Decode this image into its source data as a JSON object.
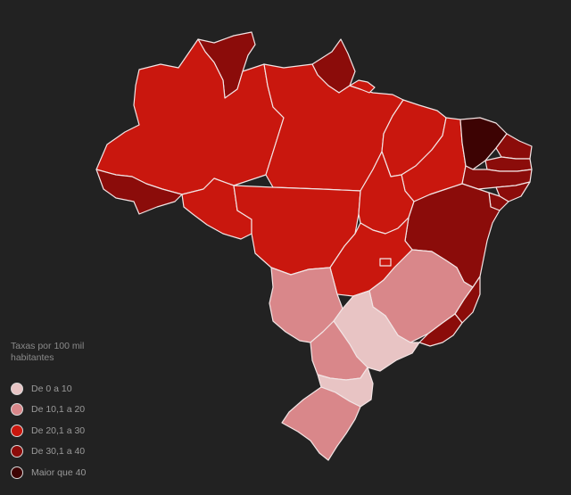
{
  "legend": {
    "title_line1": "Taxas por 100 mil",
    "title_line2": "habitantes",
    "items": [
      {
        "label": "De 0 a 10",
        "color": "#e8c4c4"
      },
      {
        "label": "De 10,1 a 20",
        "color": "#d9878a"
      },
      {
        "label": "De 20,1 a 30",
        "color": "#c9170e"
      },
      {
        "label": "De 30,1 a 40",
        "color": "#8b0c0a"
      },
      {
        "label": "Maior que 40",
        "color": "#3d0303"
      }
    ]
  },
  "colors": {
    "background": "#222222",
    "border": "#f2e4e4"
  }
}
